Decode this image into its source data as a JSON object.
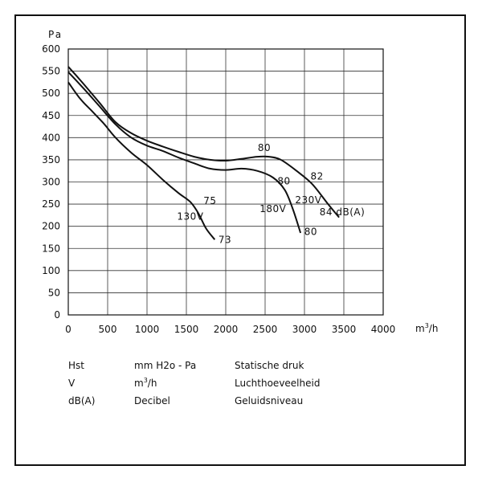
{
  "chart_data": {
    "type": "line",
    "x_unit": "m3/h",
    "x_unit_base": "m",
    "x_unit_sup": "3",
    "x_unit_rest": "/h",
    "y_unit": "Pa",
    "xlim": [
      0,
      4000
    ],
    "ylim": [
      0,
      600
    ],
    "x_ticks": [
      0,
      500,
      1000,
      1500,
      2000,
      2500,
      3000,
      3500,
      4000
    ],
    "y_ticks": [
      0,
      50,
      100,
      150,
      200,
      250,
      300,
      350,
      400,
      450,
      500,
      550,
      600
    ],
    "grid": true,
    "series": [
      {
        "name": "130V",
        "points": [
          [
            0,
            525
          ],
          [
            150,
            488
          ],
          [
            300,
            460
          ],
          [
            450,
            432
          ],
          [
            600,
            400
          ],
          [
            800,
            366
          ],
          [
            1000,
            338
          ],
          [
            1200,
            305
          ],
          [
            1400,
            275
          ],
          [
            1550,
            255
          ],
          [
            1650,
            230
          ],
          [
            1750,
            195
          ],
          [
            1860,
            170
          ]
        ]
      },
      {
        "name": "180V",
        "points": [
          [
            0,
            548
          ],
          [
            200,
            510
          ],
          [
            400,
            470
          ],
          [
            600,
            430
          ],
          [
            800,
            400
          ],
          [
            1000,
            382
          ],
          [
            1200,
            370
          ],
          [
            1400,
            355
          ],
          [
            1600,
            342
          ],
          [
            1800,
            330
          ],
          [
            2000,
            327
          ],
          [
            2200,
            330
          ],
          [
            2400,
            325
          ],
          [
            2600,
            310
          ],
          [
            2750,
            282
          ],
          [
            2850,
            240
          ],
          [
            2950,
            185
          ]
        ]
      },
      {
        "name": "230V",
        "points": [
          [
            0,
            560
          ],
          [
            200,
            520
          ],
          [
            400,
            478
          ],
          [
            600,
            435
          ],
          [
            800,
            410
          ],
          [
            1000,
            393
          ],
          [
            1200,
            380
          ],
          [
            1400,
            368
          ],
          [
            1600,
            357
          ],
          [
            1800,
            350
          ],
          [
            2000,
            348
          ],
          [
            2200,
            352
          ],
          [
            2400,
            357
          ],
          [
            2550,
            357
          ],
          [
            2700,
            350
          ],
          [
            2900,
            325
          ],
          [
            3100,
            295
          ],
          [
            3300,
            250
          ],
          [
            3440,
            220
          ]
        ]
      }
    ],
    "annotations": [
      {
        "text": "75",
        "x": 1800,
        "y": 250
      },
      {
        "text": "130V",
        "x": 1550,
        "y": 215
      },
      {
        "text": "73",
        "x": 1990,
        "y": 162
      },
      {
        "text": "80",
        "x": 2490,
        "y": 370
      },
      {
        "text": "80",
        "x": 2740,
        "y": 295
      },
      {
        "text": "180V",
        "x": 2600,
        "y": 232
      },
      {
        "text": "230V",
        "x": 3050,
        "y": 252
      },
      {
        "text": "80",
        "x": 3080,
        "y": 180
      },
      {
        "text": "82",
        "x": 3160,
        "y": 305
      },
      {
        "text": "84 dB(A)",
        "x": 3480,
        "y": 225
      }
    ]
  },
  "legend": {
    "rows": [
      {
        "symbol": "Hst",
        "unit": "mm H2o - Pa",
        "unit_base": "mm H2o - Pa",
        "unit_sup": "",
        "unit_rest": "",
        "description": "Statische druk"
      },
      {
        "symbol": "V",
        "unit": "m3/h",
        "unit_base": "m",
        "unit_sup": "3",
        "unit_rest": "/h",
        "description": "Luchthoeveelheid"
      },
      {
        "symbol": "dB(A)",
        "unit": "Decibel",
        "unit_base": "Decibel",
        "unit_sup": "",
        "unit_rest": "",
        "description": "Geluidsniveau"
      }
    ]
  }
}
